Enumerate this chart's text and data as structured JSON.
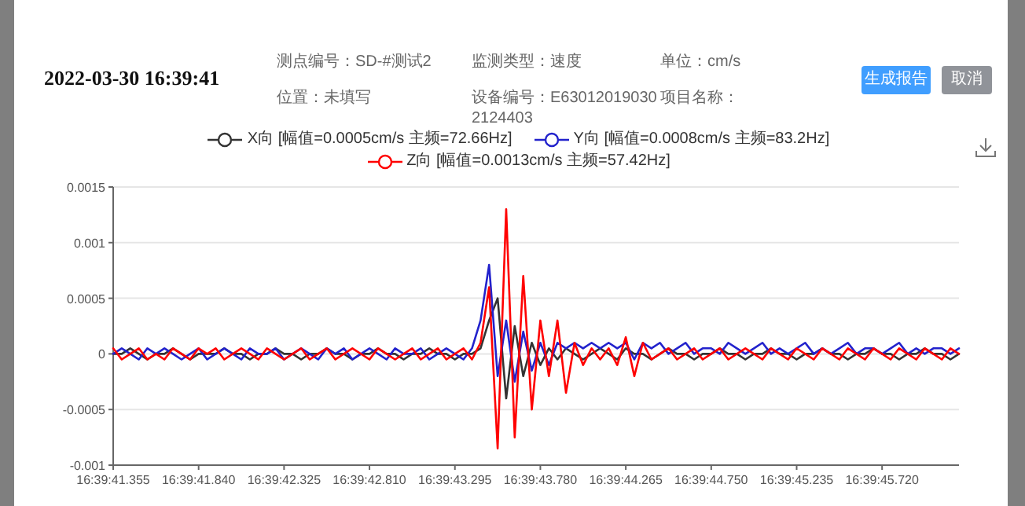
{
  "chart_data": {
    "type": "line",
    "title": "2022-03-30 16:39:41",
    "annotations": [
      "测点编号：SD-#测试2",
      "位置：未填写",
      "监测类型：速度",
      "设备编号：E630120190302124403",
      "单位：cm/s",
      "项目名称：",
      "生成报告",
      "取消"
    ],
    "categories": [
      "16:39:41.355",
      null,
      null,
      null,
      null,
      null,
      null,
      null,
      null,
      null,
      "16:39:41.840",
      null,
      null,
      null,
      null,
      null,
      null,
      null,
      null,
      null,
      "16:39:42.325",
      null,
      null,
      null,
      null,
      null,
      null,
      null,
      null,
      null,
      "16:39:42.810",
      null,
      null,
      null,
      null,
      null,
      null,
      null,
      null,
      null,
      "16:39:43.295",
      null,
      null,
      null,
      null,
      null,
      null,
      null,
      null,
      null,
      "16:39:43.780",
      null,
      null,
      null,
      null,
      null,
      null,
      null,
      null,
      null,
      "16:39:44.265",
      null,
      null,
      null,
      null,
      null,
      null,
      null,
      null,
      null,
      "16:39:44.750",
      null,
      null,
      null,
      null,
      null,
      null,
      null,
      null,
      null,
      "16:39:45.235",
      null,
      null,
      null,
      null,
      null,
      null,
      null,
      null,
      null,
      "16:39:45.720",
      null,
      null,
      null,
      null,
      null,
      null,
      null,
      null,
      null
    ],
    "series": [
      {
        "name": "X向 [幅值=0.0005cm/s 主频=72.66Hz]",
        "color": "#333333",
        "values": [
          0,
          0,
          5e-05,
          0,
          -5e-05,
          0,
          0,
          5e-05,
          0,
          -5e-05,
          0,
          0,
          0,
          5e-05,
          0,
          0,
          -5e-05,
          0,
          0,
          5e-05,
          0,
          0,
          -5e-05,
          0,
          0,
          5e-05,
          0,
          0,
          -5e-05,
          0,
          0,
          5e-05,
          0,
          0,
          -5e-05,
          0,
          0,
          5e-05,
          0,
          0,
          -5e-05,
          0,
          0,
          5e-05,
          0.0003,
          0.0005,
          -0.0004,
          0.00025,
          -0.0002,
          0.0001,
          -0.0001,
          5e-05,
          -5e-05,
          5e-05,
          0,
          -5e-05,
          0,
          5e-05,
          0,
          -5e-05,
          5e-05,
          0,
          0,
          -5e-05,
          0,
          5e-05,
          0,
          0,
          -5e-05,
          0,
          0,
          5e-05,
          0,
          0,
          -5e-05,
          0,
          0,
          5e-05,
          0,
          0,
          -5e-05,
          0,
          0,
          5e-05,
          0,
          0,
          -5e-05,
          0,
          0,
          5e-05,
          0,
          0,
          -5e-05,
          0,
          0,
          5e-05,
          0,
          0,
          -5e-05,
          0
        ]
      },
      {
        "name": "Y向 [幅值=0.0008cm/s 主频=83.2Hz]",
        "color": "#2222cc",
        "values": [
          0,
          5e-05,
          0,
          -5e-05,
          5e-05,
          0,
          5e-05,
          0,
          -5e-05,
          0,
          5e-05,
          -5e-05,
          0,
          5e-05,
          0,
          -5e-05,
          5e-05,
          0,
          0,
          5e-05,
          -5e-05,
          0,
          5e-05,
          0,
          -5e-05,
          5e-05,
          0,
          5e-05,
          -5e-05,
          0,
          5e-05,
          0,
          -5e-05,
          5e-05,
          0,
          0,
          5e-05,
          -5e-05,
          0,
          5e-05,
          0,
          -5e-05,
          5e-05,
          0.0003,
          0.0008,
          -0.0002,
          0.0003,
          -0.00025,
          0.0002,
          -0.00015,
          0.0001,
          -0.0001,
          0.0001,
          5e-05,
          0.0001,
          5e-05,
          0.0001,
          5e-05,
          0.0001,
          5e-05,
          0.0001,
          -5e-05,
          0.0001,
          5e-05,
          0.0001,
          0,
          5e-05,
          0.0001,
          0,
          5e-05,
          5e-05,
          0,
          0.0001,
          5e-05,
          0,
          5e-05,
          0.0001,
          0,
          5e-05,
          0,
          5e-05,
          0.0001,
          0,
          5e-05,
          0,
          5e-05,
          0.0001,
          0,
          5e-05,
          5e-05,
          0,
          5e-05,
          0.0001,
          0,
          5e-05,
          0,
          5e-05,
          5e-05,
          0,
          5e-05
        ]
      },
      {
        "name": "Z向 [幅值=0.0013cm/s 主频=57.42Hz]",
        "color": "#ff0000",
        "values": [
          5e-05,
          -5e-05,
          0,
          5e-05,
          -5e-05,
          0,
          -5e-05,
          5e-05,
          0,
          -5e-05,
          5e-05,
          0,
          5e-05,
          -5e-05,
          0,
          5e-05,
          0,
          -5e-05,
          5e-05,
          0,
          -5e-05,
          0,
          5e-05,
          -5e-05,
          0,
          5e-05,
          -5e-05,
          0,
          5e-05,
          0,
          -5e-05,
          5e-05,
          0,
          -5e-05,
          0,
          5e-05,
          -5e-05,
          0,
          5e-05,
          -5e-05,
          0,
          5e-05,
          -5e-05,
          0.0001,
          0.0006,
          -0.00085,
          0.0013,
          -0.00075,
          0.0007,
          -0.0005,
          0.0003,
          -0.0002,
          0.0003,
          -0.00035,
          0.0001,
          -0.0001,
          5e-05,
          -5e-05,
          5e-05,
          -0.0001,
          0.00015,
          -0.0002,
          0.0001,
          -5e-05,
          0,
          5e-05,
          -5e-05,
          0,
          5e-05,
          -5e-05,
          0,
          5e-05,
          -5e-05,
          0,
          5e-05,
          0,
          -5e-05,
          5e-05,
          0,
          -5e-05,
          5e-05,
          0,
          -5e-05,
          5e-05,
          0,
          -5e-05,
          5e-05,
          0,
          -5e-05,
          5e-05,
          0,
          -5e-05,
          5e-05,
          0,
          -5e-05,
          5e-05,
          0,
          -5e-05,
          5e-05,
          0
        ]
      }
    ],
    "ylim": [
      -0.001,
      0.0015
    ],
    "yticks": [
      -0.001,
      -0.0005,
      0,
      0.0005,
      0.001,
      0.0015
    ],
    "grid": "y",
    "legend": "top",
    "marker": "none",
    "line_style": "solid"
  }
}
